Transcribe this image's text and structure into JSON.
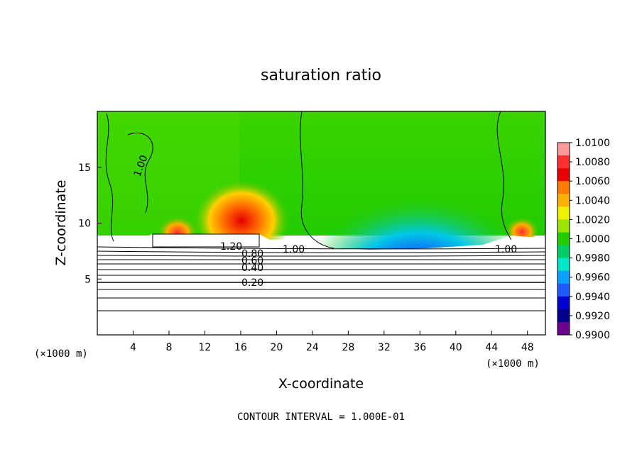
{
  "chart_data": {
    "type": "heatmap",
    "title": "saturation ratio",
    "xlabel": "X-coordinate",
    "ylabel": "Z-coordinate",
    "x_unit_label": "(×1000 m)",
    "y_unit_label": "(×1000 m)",
    "xlim": [
      0,
      50
    ],
    "ylim": [
      0,
      20
    ],
    "x_ticks": [
      "4",
      "8",
      "12",
      "16",
      "20",
      "24",
      "28",
      "32",
      "36",
      "40",
      "44",
      "48"
    ],
    "y_ticks": [
      "5",
      "10",
      "15"
    ],
    "colorbar": {
      "labels": [
        "1.0100",
        "1.0080",
        "1.0060",
        "1.0040",
        "1.0020",
        "1.0000",
        "0.9980",
        "0.9960",
        "0.9940",
        "0.9920",
        "0.9900"
      ],
      "colors": [
        "#ff9a9a",
        "#ff3030",
        "#e60000",
        "#ff7a00",
        "#ffb000",
        "#f0f000",
        "#9ae600",
        "#22cc00",
        "#00cc66",
        "#00e6c8",
        "#0aa0ff",
        "#1e5aff",
        "#0000d0",
        "#00008c",
        "#6a008c"
      ]
    },
    "contour_labels": [
      "1.20",
      "0.80",
      "0.60",
      "0.40",
      "0.20",
      "1.00",
      "1.00",
      "1.00"
    ],
    "footer": "CONTOUR INTERVAL = 1.000E-01"
  }
}
